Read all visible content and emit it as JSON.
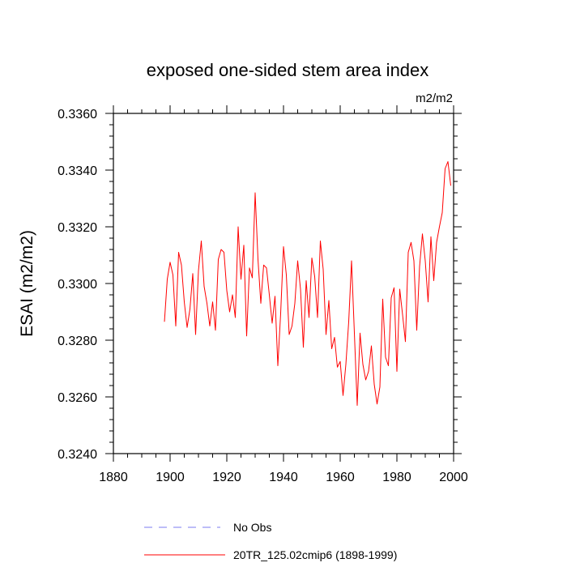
{
  "chart_data": {
    "type": "line",
    "title": "exposed one-sided stem area index",
    "units": "m2/m2",
    "xlabel": "",
    "ylabel": "ESAI  (m2/m2)",
    "xlim": [
      1880,
      2000
    ],
    "ylim": [
      0.324,
      0.336
    ],
    "xticks": [
      1880,
      1900,
      1920,
      1940,
      1960,
      1980,
      2000
    ],
    "yticks": [
      0.324,
      0.326,
      0.328,
      0.33,
      0.332,
      0.334,
      0.336
    ],
    "ytick_labels": [
      "0.3240",
      "0.3260",
      "0.3280",
      "0.3300",
      "0.3320",
      "0.3340",
      "0.3360"
    ],
    "grid": false,
    "legend_position": "bottom",
    "series": [
      {
        "name": "20TR_125.02cmip6 (1898-1999)",
        "color": "#ff0000",
        "dash": "solid",
        "x": [
          1898,
          1899,
          1900,
          1901,
          1902,
          1903,
          1904,
          1905,
          1906,
          1907,
          1908,
          1909,
          1910,
          1911,
          1912,
          1913,
          1914,
          1915,
          1916,
          1917,
          1918,
          1919,
          1920,
          1921,
          1922,
          1923,
          1924,
          1925,
          1926,
          1927,
          1928,
          1929,
          1930,
          1931,
          1932,
          1933,
          1934,
          1935,
          1936,
          1937,
          1938,
          1939,
          1940,
          1941,
          1942,
          1943,
          1944,
          1945,
          1946,
          1947,
          1948,
          1949,
          1950,
          1951,
          1952,
          1953,
          1954,
          1955,
          1956,
          1957,
          1958,
          1959,
          1960,
          1961,
          1962,
          1963,
          1964,
          1965,
          1966,
          1967,
          1968,
          1969,
          1970,
          1971,
          1972,
          1973,
          1974,
          1975,
          1976,
          1977,
          1978,
          1979,
          1980,
          1981,
          1982,
          1983,
          1984,
          1985,
          1986,
          1987,
          1988,
          1989,
          1990,
          1991,
          1992,
          1993,
          1994,
          1995,
          1996,
          1997,
          1998,
          1999
        ],
        "values": [
          0.32865,
          0.33015,
          0.33075,
          0.3303,
          0.3285,
          0.3311,
          0.33065,
          0.32935,
          0.32845,
          0.3291,
          0.33035,
          0.3282,
          0.33045,
          0.3315,
          0.3299,
          0.3293,
          0.3285,
          0.32935,
          0.32835,
          0.33085,
          0.3312,
          0.3311,
          0.32975,
          0.329,
          0.3296,
          0.3288,
          0.332,
          0.33015,
          0.33135,
          0.32815,
          0.33055,
          0.3302,
          0.3332,
          0.33085,
          0.3293,
          0.33065,
          0.33055,
          0.3296,
          0.3286,
          0.32955,
          0.3271,
          0.32895,
          0.3313,
          0.3303,
          0.3282,
          0.3285,
          0.3293,
          0.3308,
          0.3298,
          0.32775,
          0.3301,
          0.3288,
          0.3309,
          0.33025,
          0.3288,
          0.3315,
          0.3305,
          0.3282,
          0.3294,
          0.3277,
          0.3281,
          0.32705,
          0.32725,
          0.32605,
          0.32715,
          0.32865,
          0.3308,
          0.32825,
          0.3257,
          0.32825,
          0.32715,
          0.3266,
          0.3269,
          0.3278,
          0.32645,
          0.32575,
          0.32635,
          0.32945,
          0.3274,
          0.3271,
          0.3295,
          0.32985,
          0.3269,
          0.3298,
          0.3289,
          0.32795,
          0.3311,
          0.33145,
          0.3308,
          0.32835,
          0.3306,
          0.33175,
          0.3308,
          0.32935,
          0.33165,
          0.3301,
          0.33145,
          0.332,
          0.3325,
          0.33405,
          0.3343,
          0.33345
        ]
      },
      {
        "name": "No Obs",
        "color": "#7b7bf2",
        "dash": "dashed",
        "x": [],
        "values": []
      }
    ]
  }
}
